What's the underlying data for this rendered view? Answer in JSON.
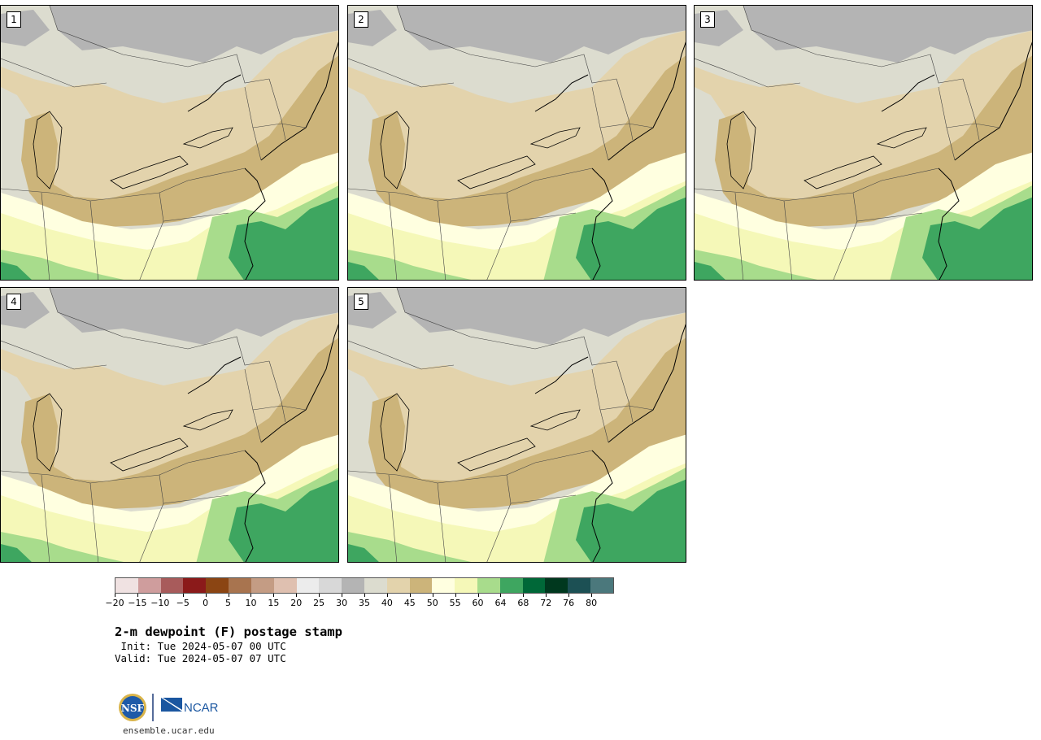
{
  "panels": [
    {
      "label": "1"
    },
    {
      "label": "2"
    },
    {
      "label": "3"
    },
    {
      "label": "4"
    },
    {
      "label": "5"
    }
  ],
  "colorbar": {
    "colors": [
      "#f0e2e2",
      "#cf9d9d",
      "#a85b5b",
      "#8b1a1a",
      "#8b4513",
      "#a8744f",
      "#c49c84",
      "#dfc0b0",
      "#ececec",
      "#d8d8d8",
      "#b4b4b4",
      "#dcdccf",
      "#e3d3ac",
      "#ccb47a",
      "#ffffe0",
      "#f5f8b8",
      "#a8dc8c",
      "#3ea660",
      "#006838",
      "#00381e",
      "#1c5054",
      "#4b787c"
    ],
    "ticks": [
      "−20",
      "−15",
      "−10",
      "−5",
      "0",
      "5",
      "10",
      "15",
      "20",
      "25",
      "30",
      "35",
      "40",
      "45",
      "50",
      "55",
      "60",
      "64",
      "68",
      "72",
      "76",
      "80"
    ]
  },
  "title": "2-m dewpoint (F) postage stamp",
  "init": " Init: Tue 2024-05-07 00 UTC",
  "valid": "Valid: Tue 2024-05-07 07 UTC",
  "logos": {
    "nsf": "NSF",
    "ncar": "NCAR"
  },
  "site": "ensemble.ucar.edu"
}
